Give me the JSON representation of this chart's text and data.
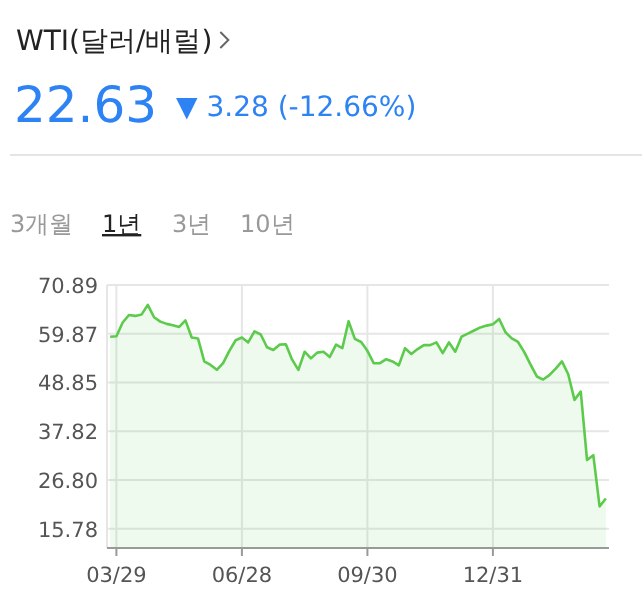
{
  "chart_data": {
    "type": "area",
    "title": "WTI(달러/배럴)",
    "annotations": [
      "22.63",
      "▼ 3.28 (-12.66%)",
      "3개월",
      "1년",
      "3년",
      "10년"
    ],
    "categories": [
      null,
      "03/29",
      null,
      null,
      null,
      null,
      null,
      null,
      null,
      null,
      null,
      null,
      null,
      null,
      null,
      null,
      null,
      null,
      null,
      null,
      null,
      "06/28",
      null,
      null,
      null,
      null,
      null,
      null,
      null,
      null,
      null,
      null,
      null,
      null,
      null,
      null,
      null,
      null,
      null,
      null,
      null,
      "09/30",
      null,
      null,
      null,
      null,
      null,
      null,
      null,
      null,
      null,
      null,
      null,
      null,
      null,
      null,
      null,
      null,
      null,
      null,
      null,
      "12/31",
      null,
      null,
      null,
      null,
      null,
      null,
      null,
      null,
      null,
      null,
      null,
      null,
      null,
      null,
      null,
      null,
      null,
      null
    ],
    "series": [
      {
        "color": "#5ccb4c",
        "values": [
          59.2,
          59.3,
          62.4,
          64.1,
          63.9,
          64.2,
          66.4,
          63.6,
          62.6,
          62.1,
          61.8,
          61.4,
          62.9,
          59.0,
          58.8,
          53.6,
          52.8,
          51.7,
          53.2,
          56.0,
          58.4,
          59.0,
          57.9,
          60.4,
          59.7,
          56.8,
          56.2,
          57.4,
          57.5,
          54.0,
          51.7,
          55.8,
          54.3,
          55.6,
          55.8,
          54.6,
          57.4,
          56.6,
          62.7,
          58.7,
          58.0,
          56.0,
          53.2,
          53.2,
          54.1,
          53.6,
          52.7,
          56.6,
          55.3,
          56.4,
          57.3,
          57.3,
          57.9,
          55.5,
          57.9,
          55.8,
          59.2,
          59.9,
          60.6,
          61.3,
          61.7,
          62.0,
          63.2,
          60.2,
          58.8,
          58.0,
          55.7,
          52.9,
          50.2,
          49.5,
          50.5,
          52.0,
          53.6,
          50.7,
          44.9,
          46.8,
          31.3,
          32.4,
          20.8,
          22.6
        ]
      }
    ],
    "ylim": [
      11.4,
      70.89
    ],
    "yticks": [
      {
        "value": 15.78,
        "label": "15.78"
      },
      {
        "value": 26.8,
        "label": "26.80"
      },
      {
        "value": 37.82,
        "label": "37.82"
      },
      {
        "value": 48.85,
        "label": "48.85"
      },
      {
        "value": 59.87,
        "label": "59.87"
      },
      {
        "value": 70.89,
        "label": "70.89"
      }
    ],
    "grid": true
  }
}
